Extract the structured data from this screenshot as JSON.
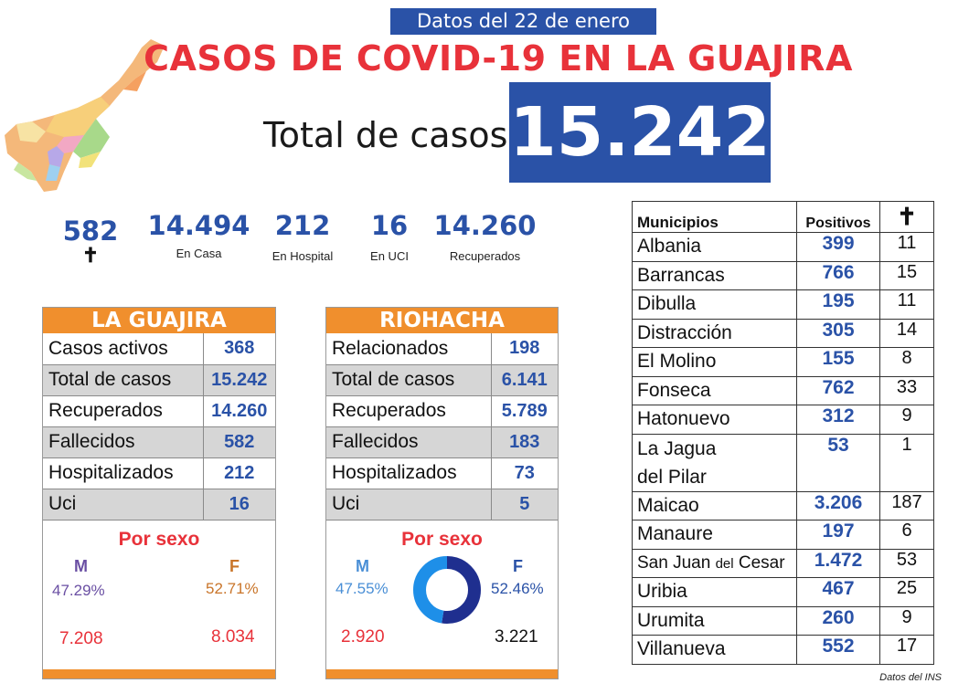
{
  "header": {
    "date_banner": "Datos del 22 de enero",
    "title": "CASOS DE COVID-19 EN LA GUAJIRA",
    "total_label": "Total de casos",
    "total_value": "15.242"
  },
  "summary": [
    {
      "value": "582",
      "label": "✝"
    },
    {
      "value": "14.494",
      "label": "En Casa"
    },
    {
      "value": "212",
      "label": "En Hospital"
    },
    {
      "value": "16",
      "label": "En UCI"
    },
    {
      "value": "14.260",
      "label": "Recuperados"
    }
  ],
  "guajira": {
    "title": "LA GUAJIRA",
    "rows": [
      {
        "label": "Casos activos",
        "value": "368"
      },
      {
        "label": "Total de casos",
        "value": "15.242"
      },
      {
        "label": "Recuperados",
        "value": "14.260"
      },
      {
        "label": "Fallecidos",
        "value": "582"
      },
      {
        "label": "Hospitalizados",
        "value": "212"
      },
      {
        "label": "Uci",
        "value": "16"
      }
    ],
    "sex_title": "Por sexo",
    "m_label": "M",
    "f_label": "F",
    "m_pct": "47.29%",
    "f_pct": "52.71%",
    "m_count": "7.208",
    "f_count": "8.034"
  },
  "riohacha": {
    "title": "RIOHACHA",
    "rows": [
      {
        "label": "Relacionados",
        "value": "198"
      },
      {
        "label": "Total de casos",
        "value": "6.141"
      },
      {
        "label": "Recuperados",
        "value": "5.789"
      },
      {
        "label": "Fallecidos",
        "value": "183"
      },
      {
        "label": "Hospitalizados",
        "value": "73"
      },
      {
        "label": "Uci",
        "value": "5"
      }
    ],
    "sex_title": "Por sexo",
    "m_label": "M",
    "f_label": "F",
    "m_pct": "47.55%",
    "f_pct": "52.46%",
    "m_count": "2.920",
    "f_count": "3.221",
    "donut": {
      "m_fraction": 0.4755,
      "f_fraction": 0.5246,
      "m_color": "#1e8fe8",
      "f_color": "#1f2f8f"
    }
  },
  "municipios": {
    "header": {
      "name": "Municipios",
      "pos": "Positivos",
      "dec": "✝"
    },
    "rows": [
      {
        "name": "Albania",
        "pos": "399",
        "dec": "11"
      },
      {
        "name": "Barrancas",
        "pos": "766",
        "dec": "15"
      },
      {
        "name": "Dibulla",
        "pos": "195",
        "dec": "11"
      },
      {
        "name": "Distracción",
        "pos": "305",
        "dec": "14"
      },
      {
        "name": "El Molino",
        "pos": "155",
        "dec": "8"
      },
      {
        "name": "Fonseca",
        "pos": "762",
        "dec": "33"
      },
      {
        "name": "Hatonuevo",
        "pos": "312",
        "dec": "9"
      },
      {
        "name": "La Jagua",
        "name2": "del Pilar",
        "pos": "53",
        "dec": "1"
      },
      {
        "name": "Maicao",
        "pos": "3.206",
        "dec": "187"
      },
      {
        "name": "Manaure",
        "pos": "197",
        "dec": "6"
      },
      {
        "name": "San Juan",
        "name_small": "del",
        "name_end": "Cesar",
        "pos": "1.472",
        "dec": "53"
      },
      {
        "name": "Uribia",
        "pos": "467",
        "dec": "25"
      },
      {
        "name": "Urumita",
        "pos": "260",
        "dec": "9"
      },
      {
        "name": "Villanueva",
        "pos": "552",
        "dec": "17"
      }
    ]
  },
  "source": "Datos del INS",
  "colors": {
    "blue": "#2a52a7",
    "red": "#e8323a",
    "orange": "#f08f2d"
  }
}
